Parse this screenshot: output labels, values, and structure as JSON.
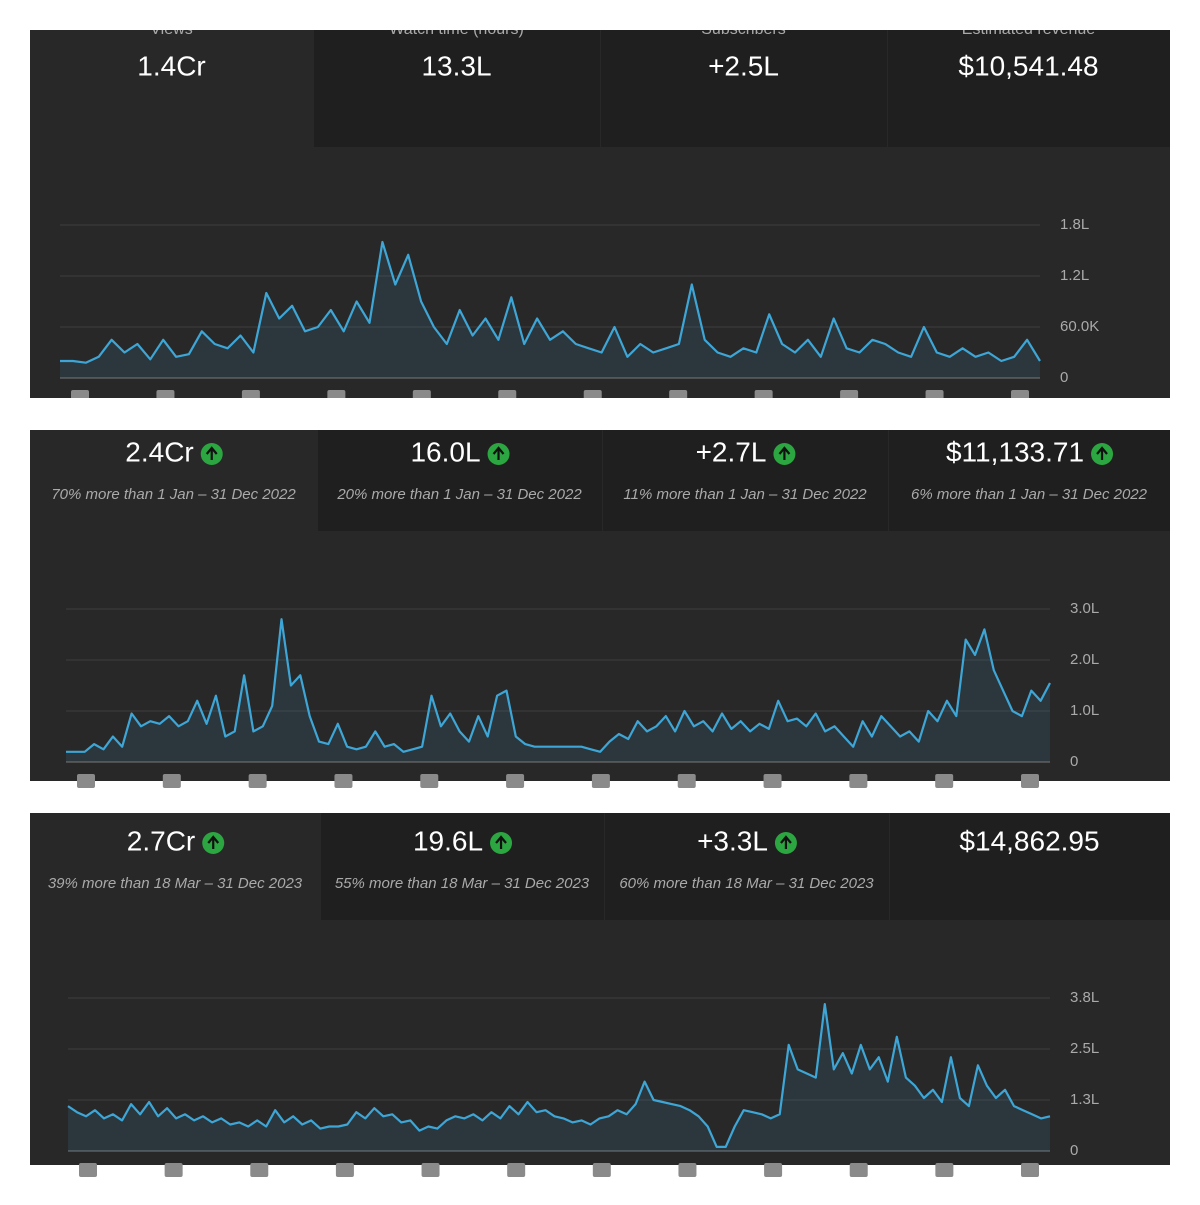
{
  "panels": [
    {
      "metrics": [
        {
          "label": "Views",
          "value": "1.4Cr"
        },
        {
          "label": "Watch time (hours)",
          "value": "13.3L"
        },
        {
          "label": "Subscribers",
          "value": "+2.5L"
        },
        {
          "label": "Estimated revenue",
          "value": "$10,541.48"
        }
      ]
    },
    {
      "metrics": [
        {
          "value": "2.4Cr",
          "comparison": "70% more than 1 Jan – 31 Dec 2022"
        },
        {
          "value": "16.0L",
          "comparison": "20% more than 1 Jan – 31 Dec 2022"
        },
        {
          "value": "+2.7L",
          "comparison": "11% more than 1 Jan – 31 Dec 2022"
        },
        {
          "value": "$11,133.71",
          "comparison": "6% more than 1 Jan – 31 Dec 2022"
        }
      ]
    },
    {
      "metrics": [
        {
          "value": "2.7Cr",
          "comparison": "39% more than 18 Mar – 31 Dec 2023"
        },
        {
          "value": "19.6L",
          "comparison": "55% more than 18 Mar – 31 Dec 2023"
        },
        {
          "value": "+3.3L",
          "comparison": "60% more than 18 Mar – 31 Dec 2023"
        },
        {
          "value": "$14,862.95"
        }
      ]
    }
  ],
  "chart_data": [
    {
      "type": "line",
      "color": "#3ea6d6",
      "grid": true,
      "ylim": [
        0,
        180000
      ],
      "yticks": [
        0,
        {
          "value": 60000,
          "label": "60.0K"
        },
        {
          "value": 120000,
          "label": "1.2L"
        },
        {
          "value": 180000,
          "label": "1.8L"
        }
      ],
      "values": [
        20000,
        20000,
        18000,
        25000,
        45000,
        30000,
        40000,
        22000,
        45000,
        25000,
        28000,
        55000,
        40000,
        35000,
        50000,
        30000,
        100000,
        70000,
        85000,
        55000,
        60000,
        80000,
        55000,
        90000,
        65000,
        160000,
        110000,
        145000,
        90000,
        60000,
        40000,
        80000,
        50000,
        70000,
        45000,
        95000,
        40000,
        70000,
        45000,
        55000,
        40000,
        35000,
        30000,
        60000,
        25000,
        40000,
        30000,
        35000,
        40000,
        110000,
        45000,
        30000,
        25000,
        35000,
        30000,
        75000,
        40000,
        30000,
        45000,
        25000,
        70000,
        35000,
        30000,
        45000,
        40000,
        30000,
        25000,
        60000,
        30000,
        25000,
        35000,
        25000,
        30000,
        20000,
        25000,
        45000,
        20000
      ]
    },
    {
      "type": "line",
      "color": "#3ea6d6",
      "grid": true,
      "ylim": [
        0,
        300000
      ],
      "yticks": [
        0,
        {
          "value": 100000,
          "label": "1.0L"
        },
        {
          "value": 200000,
          "label": "2.0L"
        },
        {
          "value": 300000,
          "label": "3.0L"
        }
      ],
      "values": [
        20000,
        20000,
        20000,
        35000,
        25000,
        50000,
        30000,
        95000,
        70000,
        80000,
        75000,
        90000,
        70000,
        80000,
        120000,
        75000,
        130000,
        50000,
        60000,
        170000,
        60000,
        70000,
        110000,
        280000,
        150000,
        170000,
        90000,
        40000,
        35000,
        75000,
        30000,
        25000,
        30000,
        60000,
        30000,
        35000,
        20000,
        25000,
        30000,
        130000,
        70000,
        95000,
        60000,
        40000,
        90000,
        50000,
        130000,
        140000,
        50000,
        35000,
        30000,
        30000,
        30000,
        30000,
        30000,
        30000,
        25000,
        20000,
        40000,
        55000,
        45000,
        80000,
        60000,
        70000,
        90000,
        60000,
        100000,
        70000,
        80000,
        60000,
        95000,
        65000,
        80000,
        60000,
        75000,
        65000,
        120000,
        80000,
        85000,
        70000,
        95000,
        60000,
        70000,
        50000,
        30000,
        80000,
        50000,
        90000,
        70000,
        50000,
        60000,
        40000,
        100000,
        80000,
        120000,
        90000,
        240000,
        210000,
        260000,
        180000,
        140000,
        100000,
        90000,
        140000,
        120000,
        155000
      ]
    },
    {
      "type": "line",
      "color": "#3ea6d6",
      "grid": true,
      "ylim": [
        0,
        375000
      ],
      "yticks": [
        0,
        {
          "value": 125000,
          "label": "1.3L"
        },
        {
          "value": 250000,
          "label": "2.5L"
        },
        {
          "value": 375000,
          "label": "3.8L"
        }
      ],
      "values": [
        110000,
        95000,
        85000,
        100000,
        80000,
        90000,
        75000,
        115000,
        90000,
        120000,
        85000,
        105000,
        80000,
        90000,
        75000,
        85000,
        70000,
        80000,
        65000,
        70000,
        60000,
        75000,
        60000,
        100000,
        70000,
        85000,
        65000,
        75000,
        55000,
        60000,
        60000,
        65000,
        95000,
        80000,
        105000,
        85000,
        90000,
        70000,
        75000,
        50000,
        60000,
        55000,
        75000,
        85000,
        80000,
        90000,
        75000,
        95000,
        80000,
        110000,
        90000,
        120000,
        95000,
        100000,
        85000,
        80000,
        70000,
        75000,
        65000,
        80000,
        85000,
        100000,
        90000,
        115000,
        170000,
        125000,
        120000,
        115000,
        110000,
        100000,
        85000,
        60000,
        10000,
        10000,
        60000,
        100000,
        95000,
        90000,
        80000,
        90000,
        260000,
        200000,
        190000,
        180000,
        360000,
        200000,
        240000,
        190000,
        260000,
        200000,
        230000,
        170000,
        280000,
        180000,
        160000,
        130000,
        150000,
        120000,
        230000,
        130000,
        110000,
        210000,
        160000,
        130000,
        150000,
        110000,
        100000,
        90000,
        80000,
        85000
      ]
    }
  ]
}
